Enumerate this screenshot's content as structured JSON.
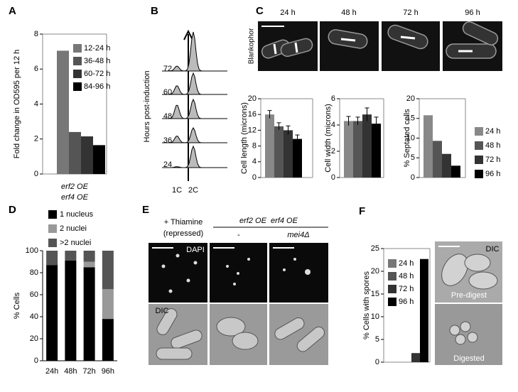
{
  "panel_labels": [
    "A",
    "B",
    "C",
    "D",
    "E",
    "F"
  ],
  "panel_b": {
    "ylabel": "Hours post-induction",
    "rows": [
      72,
      60,
      48,
      36,
      24
    ],
    "xticks": [
      "1C",
      "2C"
    ]
  },
  "panel_c": {
    "times": [
      "24 h",
      "48 h",
      "72 h",
      "96 h"
    ],
    "stain": "Blankophor"
  },
  "panel_e": {
    "condition_1": [
      "+ Thiamine",
      "(repressed)"
    ],
    "genotype": "erf2 OE  erf4 OE",
    "condition_2": "-",
    "condition_3": "mei4Δ",
    "top_label": "DAPI",
    "bottom_label": "DIC"
  },
  "panel_f": {
    "image_labels": [
      "DIC",
      "Pre-digest",
      "Digested"
    ]
  },
  "chart_data": [
    {
      "type": "bar",
      "ylabel": "Fold change in OD595 per 12 h",
      "xlabel": [
        "erf2 OE",
        "erf4 OE"
      ],
      "values": [
        7.05,
        2.4,
        2.15,
        1.65
      ],
      "colors": [
        "#777777",
        "#555555",
        "#333333",
        "#000000"
      ],
      "legend": [
        "12-24 h",
        "36-48 h",
        "60-72 h",
        "84-96 h"
      ],
      "ylim": [
        0,
        8
      ],
      "yticks": [
        0,
        2,
        4,
        6,
        8
      ]
    },
    {
      "type": "bar",
      "ylabel": "Cell length (microns)",
      "values": [
        16,
        13,
        12,
        9.8
      ],
      "errors": [
        1,
        0.9,
        1.1,
        1
      ],
      "colors": [
        "#888888",
        "#555555",
        "#333333",
        "#000000"
      ],
      "ylim": [
        0,
        20
      ],
      "yticks": [
        0,
        4,
        8,
        12,
        16,
        20
      ]
    },
    {
      "type": "bar",
      "ylabel": "Cell width (microns)",
      "values": [
        4.3,
        4.3,
        4.8,
        4.1
      ],
      "errors": [
        0.35,
        0.3,
        0.5,
        0.5
      ],
      "colors": [
        "#888888",
        "#555555",
        "#333333",
        "#000000"
      ],
      "ylim": [
        0,
        6
      ],
      "yticks": [
        0,
        2,
        4,
        6
      ]
    },
    {
      "type": "bar",
      "ylabel": "% Septated cells",
      "values": [
        15.8,
        9.3,
        6,
        3
      ],
      "colors": [
        "#888888",
        "#555555",
        "#333333",
        "#000000"
      ],
      "legend": [
        "24 h",
        "48 h",
        "72 h",
        "96 h"
      ],
      "ylim": [
        0,
        20
      ],
      "yticks": [
        0,
        5,
        10,
        15,
        20
      ]
    },
    {
      "type": "stacked_bar",
      "ylabel": "% Cells",
      "categories": [
        "24h",
        "48h",
        "72h",
        "96h"
      ],
      "series": [
        {
          "name": "1 nucleus",
          "color": "#000000",
          "values": [
            87,
            91,
            85,
            38
          ]
        },
        {
          "name": "2 nuclei",
          "color": "#999999",
          "values": [
            0,
            0,
            5,
            27
          ]
        },
        {
          "name": ">2 nuclei",
          "color": "#555555",
          "values": [
            13,
            9,
            10,
            35
          ]
        }
      ],
      "ylim": [
        0,
        100
      ],
      "yticks": [
        0,
        20,
        40,
        60,
        80,
        100
      ]
    },
    {
      "type": "bar",
      "ylabel": "% Cells with spores",
      "values": [
        0,
        0,
        2,
        22.7
      ],
      "colors": [
        "#777777",
        "#555555",
        "#333333",
        "#000000"
      ],
      "legend": [
        "24 h",
        "48 h",
        "72 h",
        "96 h"
      ],
      "ylim": [
        0,
        25
      ],
      "yticks": [
        0,
        5,
        10,
        15,
        20,
        25
      ]
    }
  ]
}
